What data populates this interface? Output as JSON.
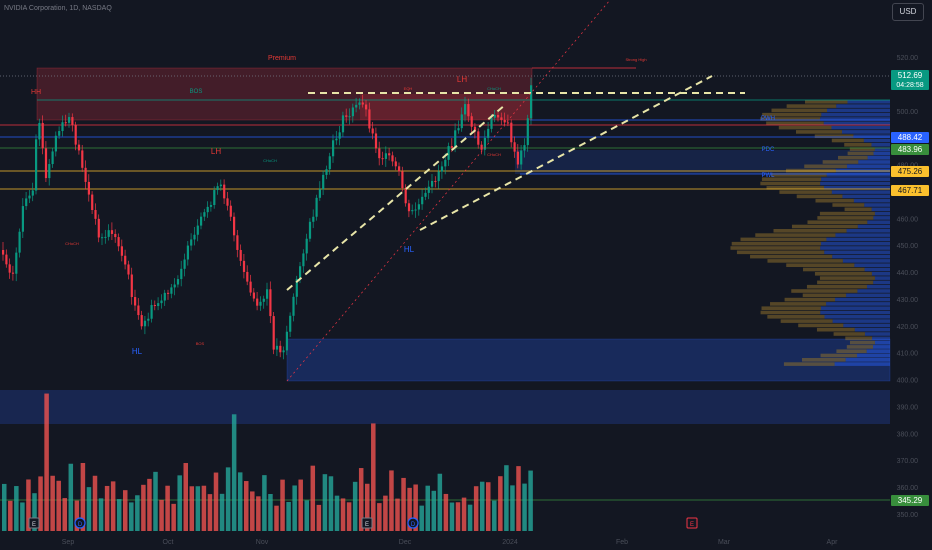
{
  "header": {
    "title": "NVIDIA Corporation, 1D, NASDAQ",
    "currency": "USD"
  },
  "chart_data": {
    "type": "candlestick",
    "ylim": [
      350,
      528
    ],
    "y_ticks": [
      520,
      510,
      500,
      490,
      480,
      470,
      460,
      450,
      440,
      430,
      420,
      410,
      400,
      390,
      380,
      370,
      360,
      350
    ],
    "x_ticks": [
      "Sep",
      "Oct",
      "Nov",
      "Dec",
      "2024",
      "Feb",
      "Mar",
      "Apr"
    ],
    "last_price": {
      "value": "512.69",
      "countdown": "04:28:58",
      "color": "#089981"
    },
    "price_labels": [
      {
        "value": "488.42",
        "color": "#2962ff"
      },
      {
        "value": "483.96",
        "color": "#388e3c"
      },
      {
        "value": "475.26",
        "color": "#fbc02d"
      },
      {
        "value": "467.71",
        "color": "#fbc02d"
      },
      {
        "value": "345.29",
        "color": "#388e3c"
      }
    ],
    "annotations": [
      {
        "text": "Premium",
        "color": "#e53935"
      },
      {
        "text": "HH",
        "color": "#e53935"
      },
      {
        "text": "BOS",
        "color": "#089981"
      },
      {
        "text": "LH",
        "color": "#e53935"
      },
      {
        "text": "LH",
        "color": "#e53935"
      },
      {
        "text": "HL",
        "color": "#2962ff"
      },
      {
        "text": "HL",
        "color": "#2962ff"
      },
      {
        "text": "CHoCH",
        "color": "#e53935"
      },
      {
        "text": "CHoCH",
        "color": "#089981"
      },
      {
        "text": "CHoCH",
        "color": "#089981"
      },
      {
        "text": "CHoCH",
        "color": "#e53935"
      },
      {
        "text": "BOS",
        "color": "#e53935"
      },
      {
        "text": "EQH",
        "color": "#e53935"
      },
      {
        "text": "Strong High",
        "color": "#e53935"
      },
      {
        "text": "PWH",
        "color": "#2962ff"
      },
      {
        "text": "PWL",
        "color": "#2962ff"
      },
      {
        "text": "PDC",
        "color": "#2962ff"
      }
    ],
    "event_markers": [
      "E",
      "D",
      "E",
      "D",
      "E"
    ],
    "colors": {
      "up": "#089981",
      "down": "#f23645",
      "volume_up": "#26a69a",
      "volume_down": "#ef5350",
      "trendline": "#e8e5a8"
    }
  }
}
